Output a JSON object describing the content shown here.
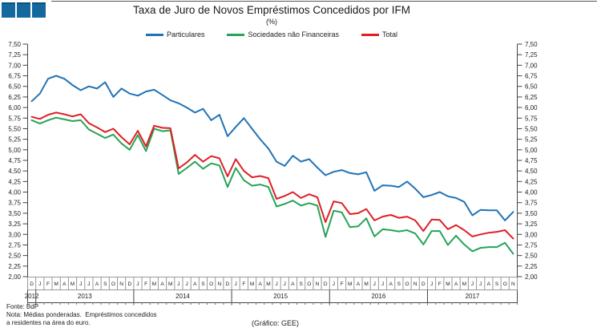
{
  "header": {
    "title": "Taxa de Juro de Novos Empréstimos Concedidos por IFM",
    "subtitle": "(%)"
  },
  "footer": {
    "fonte": "Fonte: BdP",
    "nota_line1": "Nota: Médias ponderadas.  Empréstimos concedidos",
    "nota_line2": "a residentes na área do euro.",
    "credit": "(Gráfico: GEE)"
  },
  "logo": {
    "description": "three-blue-squares",
    "color": "#15689F",
    "count": 3
  },
  "chart_data": {
    "type": "line",
    "title": "Taxa de Juro de Novos Empréstimos Concedidos por IFM",
    "subtitle": "(%)",
    "legend_position": "top",
    "grid": "off",
    "y_axis": {
      "min": 2.0,
      "max": 7.5,
      "step": 0.25,
      "sides": "both",
      "decimal_separator": ",",
      "tick_labels": [
        "7,50",
        "7,25",
        "7,00",
        "6,75",
        "6,50",
        "6,25",
        "6,00",
        "5,75",
        "5,50",
        "5,25",
        "5,00",
        "4,75",
        "4,50",
        "4,25",
        "4,00",
        "3,75",
        "3,50",
        "3,25",
        "3,00",
        "2,75",
        "2,50",
        "2,25",
        "2,00"
      ]
    },
    "x_axis": {
      "start": "2012-12",
      "end": "2017-11",
      "month_letters": [
        "D",
        "J",
        "F",
        "M",
        "A",
        "M",
        "J",
        "J",
        "A",
        "S",
        "O",
        "N",
        "D",
        "J",
        "F",
        "M",
        "A",
        "M",
        "J",
        "J",
        "A",
        "S",
        "O",
        "N",
        "D",
        "J",
        "F",
        "M",
        "A",
        "M",
        "J",
        "J",
        "A",
        "S",
        "O",
        "N",
        "D",
        "J",
        "F",
        "M",
        "A",
        "M",
        "J",
        "J",
        "A",
        "S",
        "O",
        "N",
        "D",
        "J",
        "F",
        "M",
        "A",
        "M",
        "J",
        "J",
        "A",
        "S",
        "O",
        "N"
      ],
      "years": [
        {
          "label": "2012",
          "months": 1
        },
        {
          "label": "2013",
          "months": 12
        },
        {
          "label": "2014",
          "months": 12
        },
        {
          "label": "2015",
          "months": 12
        },
        {
          "label": "2016",
          "months": 12
        },
        {
          "label": "2017",
          "months": 11
        }
      ]
    },
    "series": [
      {
        "name": "Particulares",
        "color": "#2173B6",
        "values": [
          6.15,
          6.33,
          6.68,
          6.75,
          6.68,
          6.53,
          6.41,
          6.5,
          6.45,
          6.6,
          6.25,
          6.45,
          6.33,
          6.28,
          6.38,
          6.42,
          6.3,
          6.17,
          6.1,
          6.0,
          5.88,
          5.97,
          5.7,
          5.83,
          5.32,
          5.54,
          5.75,
          5.5,
          5.25,
          5.03,
          4.72,
          4.62,
          4.86,
          4.72,
          4.78,
          4.58,
          4.4,
          4.48,
          4.52,
          4.45,
          4.42,
          4.47,
          4.03,
          4.16,
          4.15,
          4.12,
          4.25,
          4.08,
          3.88,
          3.93,
          4.0,
          3.9,
          3.86,
          3.77,
          3.45,
          3.58,
          3.57,
          3.57,
          3.33,
          3.53
        ]
      },
      {
        "name": "Sociedades não Financeiras",
        "color": "#27A357",
        "values": [
          5.7,
          5.62,
          5.7,
          5.76,
          5.72,
          5.68,
          5.7,
          5.48,
          5.38,
          5.28,
          5.36,
          5.15,
          5.0,
          5.35,
          4.97,
          5.5,
          5.44,
          5.46,
          4.43,
          4.57,
          4.72,
          4.55,
          4.68,
          4.63,
          4.12,
          4.57,
          4.28,
          4.15,
          4.18,
          4.12,
          3.66,
          3.72,
          3.8,
          3.68,
          3.74,
          3.68,
          2.94,
          3.56,
          3.52,
          3.17,
          3.19,
          3.38,
          2.95,
          3.12,
          3.1,
          3.07,
          3.1,
          3.02,
          2.76,
          3.08,
          3.08,
          2.75,
          2.97,
          2.76,
          2.6,
          2.68,
          2.7,
          2.7,
          2.8,
          2.54
        ]
      },
      {
        "name": "Total",
        "color": "#DF2025",
        "values": [
          5.78,
          5.73,
          5.83,
          5.88,
          5.84,
          5.79,
          5.84,
          5.63,
          5.53,
          5.42,
          5.5,
          5.3,
          5.13,
          5.45,
          5.08,
          5.57,
          5.52,
          5.51,
          4.56,
          4.7,
          4.88,
          4.72,
          4.85,
          4.8,
          4.37,
          4.78,
          4.5,
          4.35,
          4.38,
          4.33,
          3.84,
          3.91,
          4.0,
          3.86,
          3.95,
          3.88,
          3.29,
          3.78,
          3.74,
          3.48,
          3.5,
          3.6,
          3.33,
          3.42,
          3.46,
          3.39,
          3.42,
          3.33,
          3.08,
          3.35,
          3.34,
          3.12,
          3.22,
          3.1,
          2.95,
          3.0,
          3.04,
          3.06,
          3.1,
          2.9
        ]
      }
    ]
  }
}
